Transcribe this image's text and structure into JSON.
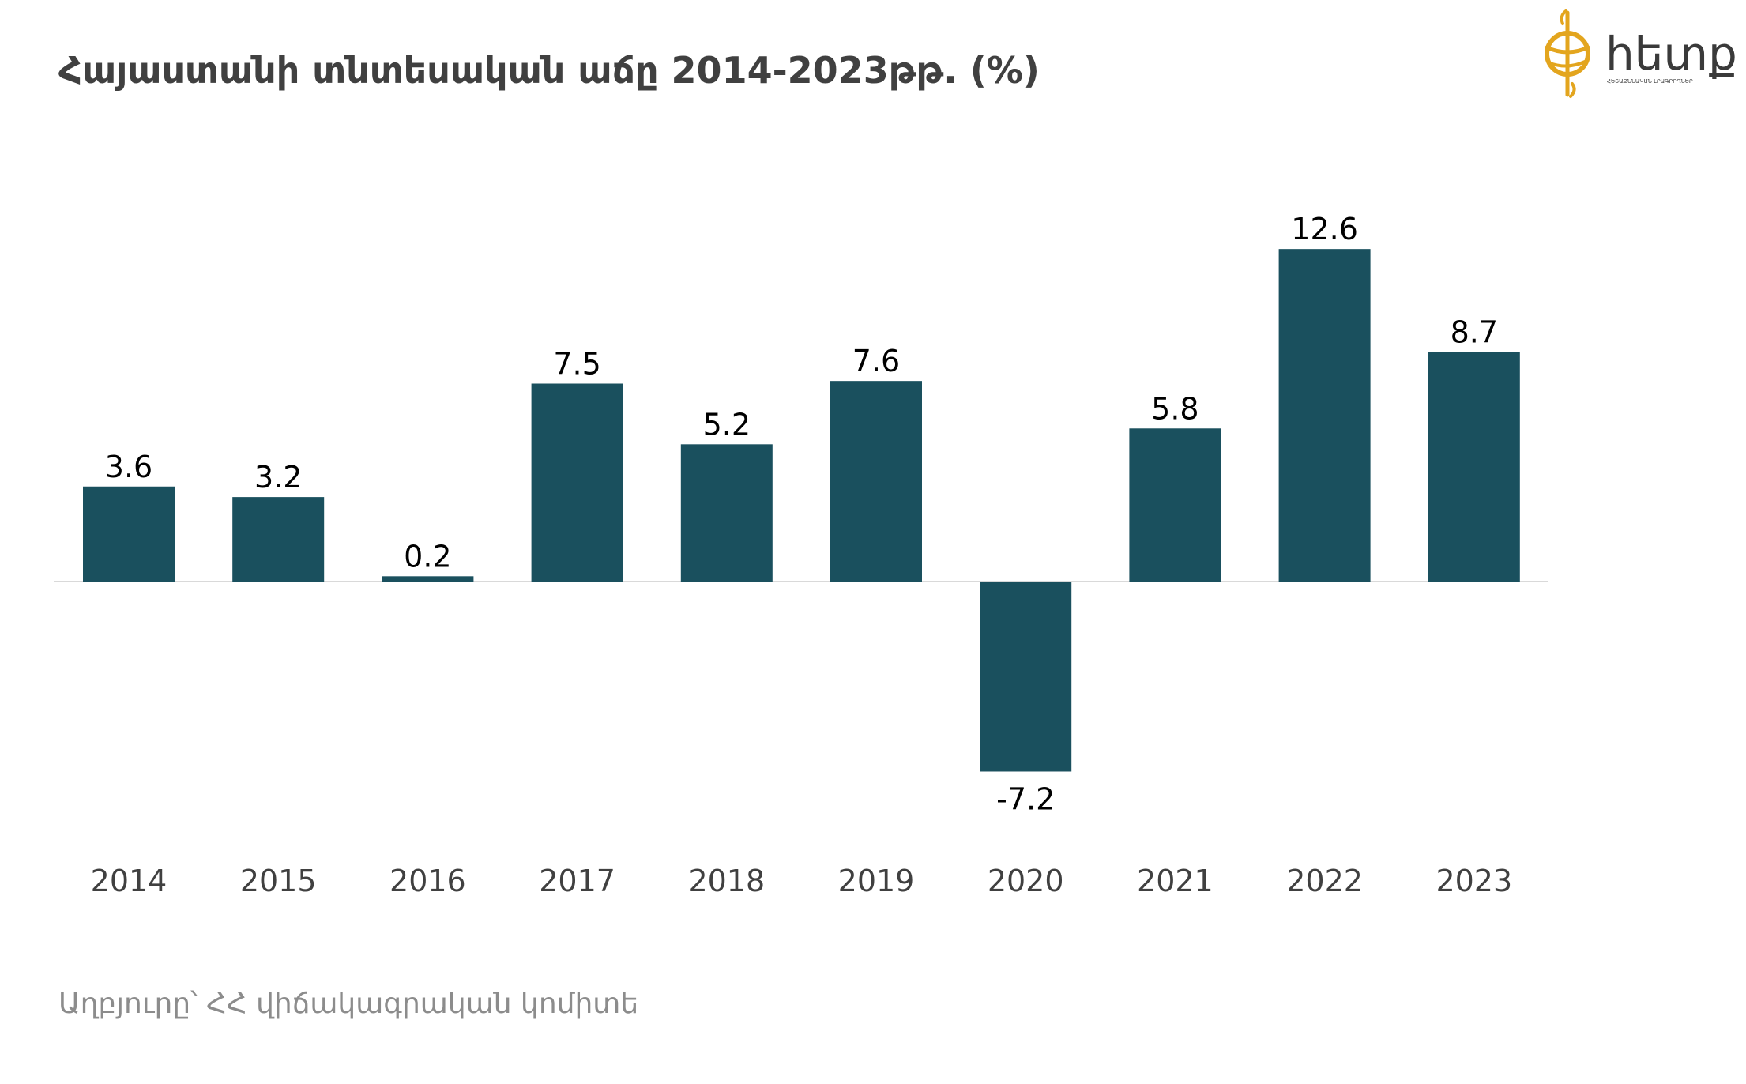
{
  "title": "Հայաստանի տնտեսական աճը 2014-2023թթ. (%)",
  "source": "Աղբյուրը՝ ՀՀ վիճակագրական կոմիտե",
  "logo": {
    "name": "հետք",
    "tagline": "ՀԵՏԱՔՆՆԱԿԱՆ ԼՐԱԳՐՈՂՆԵՐ",
    "accent_color": "#e3a51e"
  },
  "chart_data": {
    "type": "bar",
    "title": "Հայաստանի տնտեսական աճը 2014-2023թթ. (%)",
    "categories": [
      "2014",
      "2015",
      "2016",
      "2017",
      "2018",
      "2019",
      "2020",
      "2021",
      "2022",
      "2023"
    ],
    "values": [
      3.6,
      3.2,
      0.2,
      7.5,
      5.2,
      7.6,
      -7.2,
      5.8,
      12.6,
      8.7
    ],
    "labels": [
      "3.6",
      "3.2",
      "0.2",
      "7.5",
      "5.2",
      "7.6",
      "-7.2",
      "5.8",
      "12.6",
      "8.7"
    ],
    "xlabel": "",
    "ylabel": "",
    "ylim": [
      -10,
      15
    ],
    "grid": false,
    "legend": "none",
    "bar_color": "#1a505e",
    "axis_color": "#d9d9d9",
    "label_color": "#000000",
    "tick_color": "#404040"
  }
}
